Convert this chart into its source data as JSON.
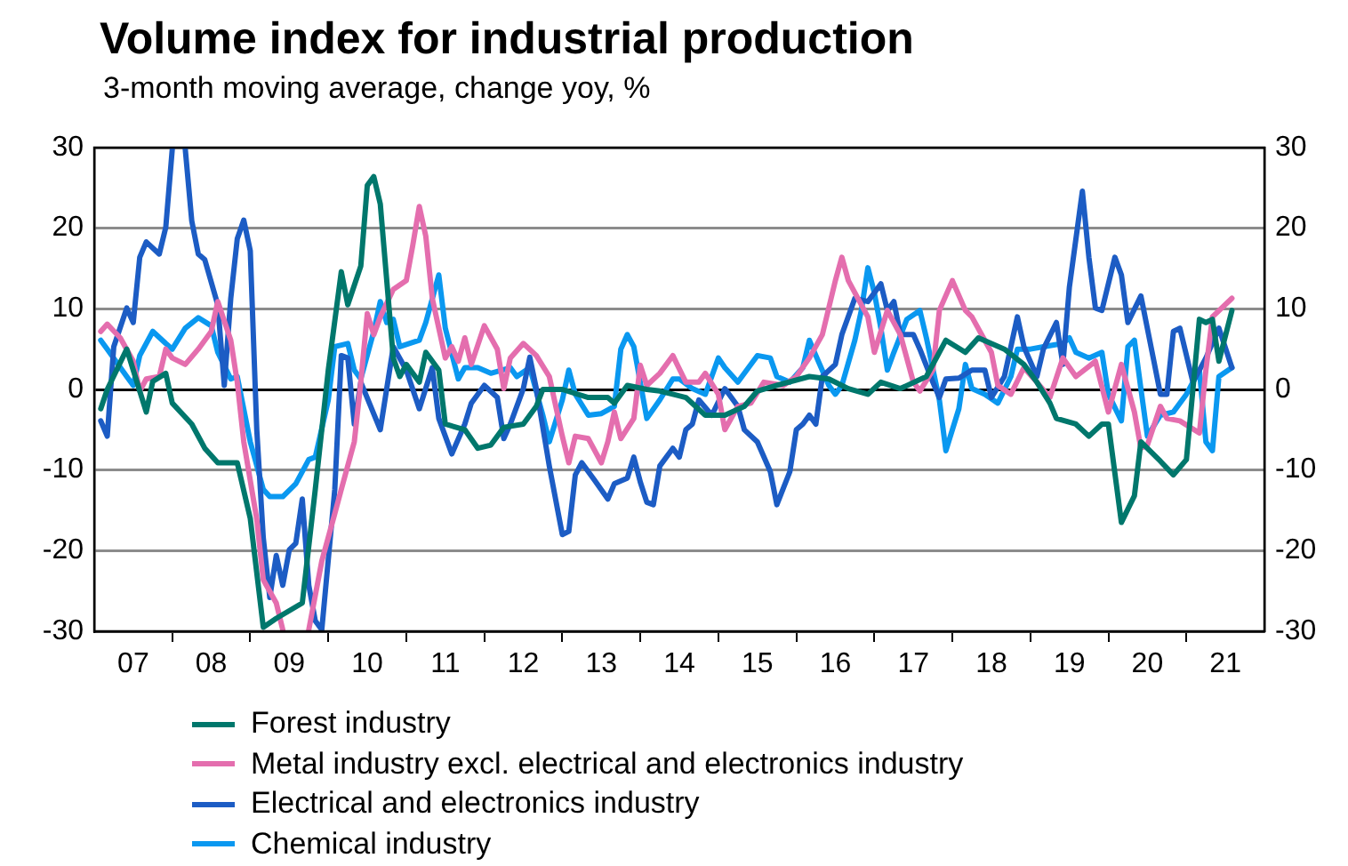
{
  "chart_data": {
    "type": "line",
    "title": "Volume index for industrial production",
    "subtitle": "3-month moving average, change yoy, %",
    "xlim": [
      "2007-01",
      "2022-01"
    ],
    "xticks": [
      {
        "value": "2007-07",
        "label": "07"
      },
      {
        "value": "2008-01",
        "label": null
      },
      {
        "value": "2008-07",
        "label": "08"
      },
      {
        "value": "2009-01",
        "label": null
      },
      {
        "value": "2009-07",
        "label": "09"
      },
      {
        "value": "2010-01",
        "label": null
      },
      {
        "value": "2010-07",
        "label": "10"
      },
      {
        "value": "2011-01",
        "label": null
      },
      {
        "value": "2011-07",
        "label": "11"
      },
      {
        "value": "2012-01",
        "label": null
      },
      {
        "value": "2012-07",
        "label": "12"
      },
      {
        "value": "2013-01",
        "label": null
      },
      {
        "value": "2013-07",
        "label": "13"
      },
      {
        "value": "2014-01",
        "label": null
      },
      {
        "value": "2014-07",
        "label": "14"
      },
      {
        "value": "2015-01",
        "label": null
      },
      {
        "value": "2015-07",
        "label": "15"
      },
      {
        "value": "2016-01",
        "label": null
      },
      {
        "value": "2016-07",
        "label": "16"
      },
      {
        "value": "2017-01",
        "label": null
      },
      {
        "value": "2017-07",
        "label": "17"
      },
      {
        "value": "2018-01",
        "label": null
      },
      {
        "value": "2018-07",
        "label": "18"
      },
      {
        "value": "2019-01",
        "label": null
      },
      {
        "value": "2019-07",
        "label": "19"
      },
      {
        "value": "2020-01",
        "label": null
      },
      {
        "value": "2020-07",
        "label": "20"
      },
      {
        "value": "2021-01",
        "label": null
      },
      {
        "value": "2021-07",
        "label": "21"
      }
    ],
    "ylim": [
      -30,
      30
    ],
    "yticks": [
      -30,
      -20,
      -10,
      0,
      10,
      20,
      30
    ],
    "y2lim": [
      -30,
      30
    ],
    "y2ticks": [
      -30,
      -20,
      -10,
      0,
      10,
      20,
      30
    ],
    "grid": "y",
    "legend": "bottom",
    "marker": "none",
    "line_style": "solid",
    "series": [
      {
        "name": "Forest industry",
        "color": "#00776c",
        "x": [
          "2007-02",
          "2007-03",
          "2007-06",
          "2007-07",
          "2007-09",
          "2007-10",
          "2007-12",
          "2008-01",
          "2008-04",
          "2008-06",
          "2008-08",
          "2008-11",
          "2009-01",
          "2009-03",
          "2009-05",
          "2009-09",
          "2009-11",
          "2010-01",
          "2010-03",
          "2010-04",
          "2010-06",
          "2010-07",
          "2010-08",
          "2010-09",
          "2010-11",
          "2010-12",
          "2011-01",
          "2011-03",
          "2011-04",
          "2011-06",
          "2011-07",
          "2011-10",
          "2011-12",
          "2012-02",
          "2012-04",
          "2012-07",
          "2012-09",
          "2012-10",
          "2013-01",
          "2013-05",
          "2013-08",
          "2013-09",
          "2013-11",
          "2014-02",
          "2014-04",
          "2014-06",
          "2014-08",
          "2014-11",
          "2015-02",
          "2015-05",
          "2015-07",
          "2015-10",
          "2016-03",
          "2016-06",
          "2016-09",
          "2016-12",
          "2017-02",
          "2017-05",
          "2017-09",
          "2017-12",
          "2018-03",
          "2018-05",
          "2018-09",
          "2018-12",
          "2019-02",
          "2019-04",
          "2019-05",
          "2019-08",
          "2019-10",
          "2019-12",
          "2020-01",
          "2020-03",
          "2020-05",
          "2020-06",
          "2020-09",
          "2020-11",
          "2021-01",
          "2021-03",
          "2021-04",
          "2021-05",
          "2021-06",
          "2021-08"
        ],
        "values": [
          -2.4,
          0,
          5,
          2.4,
          -2.8,
          1,
          2,
          -1.7,
          -4.3,
          -7.3,
          -9.1,
          -9.1,
          -16,
          -29.5,
          -28.4,
          -26.5,
          -12.4,
          2.4,
          14.6,
          10.5,
          15.3,
          25.3,
          26.4,
          23,
          3.9,
          1.6,
          3.1,
          0.9,
          4.6,
          2.4,
          -4.3,
          -5,
          -7.3,
          -6.9,
          -4.7,
          -4.3,
          -2.1,
          0,
          0,
          -1,
          -1,
          -1.7,
          0.5,
          0,
          -0.2,
          -0.6,
          -1,
          -3.2,
          -3.2,
          -2.1,
          -0.2,
          0.5,
          1.6,
          1.3,
          0.1,
          -0.6,
          0.9,
          0.1,
          1.6,
          6.1,
          4.6,
          6.4,
          5,
          3.1,
          0.9,
          -1.7,
          -3.6,
          -4.3,
          -5.8,
          -4.3,
          -4.3,
          -16.5,
          -13.2,
          -6.5,
          -8.9,
          -10.6,
          -8.7,
          8.7,
          8.3,
          8.7,
          3.5,
          9.8
        ]
      },
      {
        "name": "Metal industry excl. electrical and electronics industry",
        "color": "#e46eae",
        "x": [
          "2007-02",
          "2007-03",
          "2007-05",
          "2007-07",
          "2007-08",
          "2007-09",
          "2007-11",
          "2007-12",
          "2008-01",
          "2008-03",
          "2008-05",
          "2008-07",
          "2008-08",
          "2008-10",
          "2008-11",
          "2008-12",
          "2009-02",
          "2009-03",
          "2009-05",
          "2009-06",
          "2009-08",
          "2009-10",
          "2009-12",
          "2010-02",
          "2010-03",
          "2010-05",
          "2010-06",
          "2010-07",
          "2010-08",
          "2010-09",
          "2010-11",
          "2011-01",
          "2011-02",
          "2011-03",
          "2011-04",
          "2011-05",
          "2011-07",
          "2011-08",
          "2011-09",
          "2011-10",
          "2011-11",
          "2012-01",
          "2012-03",
          "2012-04",
          "2012-05",
          "2012-07",
          "2012-09",
          "2012-11",
          "2013-01",
          "2013-02",
          "2013-03",
          "2013-05",
          "2013-07",
          "2013-08",
          "2013-09",
          "2013-10",
          "2013-12",
          "2014-01",
          "2014-02",
          "2014-04",
          "2014-06",
          "2014-08",
          "2014-10",
          "2014-11",
          "2015-01",
          "2015-02",
          "2015-04",
          "2015-06",
          "2015-08",
          "2015-11",
          "2016-01",
          "2016-03",
          "2016-05",
          "2016-07",
          "2016-08",
          "2016-09",
          "2016-12",
          "2017-01",
          "2017-03",
          "2017-05",
          "2017-07",
          "2017-08",
          "2017-10",
          "2017-11",
          "2018-01",
          "2018-03",
          "2018-04",
          "2018-07",
          "2018-08",
          "2018-10",
          "2018-12",
          "2019-02",
          "2019-04",
          "2019-06",
          "2019-08",
          "2019-11",
          "2020-01",
          "2020-03",
          "2020-05",
          "2020-06",
          "2020-07",
          "2020-09",
          "2020-10",
          "2020-12",
          "2021-03",
          "2021-04",
          "2021-05",
          "2021-08"
        ],
        "values": [
          7.2,
          8.1,
          6.4,
          3.5,
          -0.2,
          1.3,
          1.6,
          5,
          3.9,
          3.1,
          5,
          7.2,
          10.9,
          6.1,
          0.9,
          -6.5,
          -16.1,
          -23.6,
          -26.5,
          -29.8,
          null,
          -29.8,
          -21.3,
          -15.4,
          -12.4,
          -6.5,
          0.9,
          9.4,
          6.8,
          9,
          12.4,
          13.5,
          17.9,
          22.7,
          19,
          11.3,
          3.9,
          5.3,
          3.5,
          6.4,
          3.1,
          7.9,
          5,
          0.1,
          3.9,
          5.7,
          4.2,
          1.6,
          -5.8,
          -9.1,
          -5.8,
          -6.1,
          -9.1,
          -6.5,
          -2.8,
          -6.1,
          -3.6,
          3,
          0.5,
          2,
          4.2,
          0.9,
          0.9,
          2,
          -0.6,
          -5,
          -2.1,
          -1.7,
          0.9,
          0.5,
          1.6,
          3.9,
          6.8,
          13.5,
          16.4,
          13.5,
          9,
          4.6,
          9.8,
          6.8,
          0.9,
          -0.2,
          2.4,
          9.8,
          13.5,
          9.8,
          9,
          4.6,
          0.5,
          -0.6,
          2.7,
          0.9,
          -1,
          3.9,
          1.6,
          3.5,
          -2.8,
          3.1,
          -2.8,
          -7.3,
          -6.9,
          -2.1,
          -3.6,
          -3.9,
          -5.4,
          2.4,
          9,
          11.3
        ]
      },
      {
        "name": "Electrical and electronics industry",
        "color": "#1c5cc4",
        "x": [
          "2007-02",
          "2007-03",
          "2007-04",
          "2007-06",
          "2007-07",
          "2007-08",
          "2007-09",
          "2007-11",
          "2007-12",
          "2008-01",
          "2008-02",
          "2008-03",
          "2008-04",
          "2008-05",
          "2008-06",
          "2008-08",
          "2008-09",
          "2008-10",
          "2008-11",
          "2008-12",
          "2009-01",
          "2009-02",
          "2009-03",
          "2009-04",
          "2009-05",
          "2009-06",
          "2009-07",
          "2009-08",
          "2009-09",
          "2009-10",
          "2009-11",
          "2009-12",
          "2010-02",
          "2010-03",
          "2010-04",
          "2010-05",
          "2010-06",
          "2010-09",
          "2010-11",
          "2011-01",
          "2011-03",
          "2011-05",
          "2011-06",
          "2011-08",
          "2011-10",
          "2011-11",
          "2012-01",
          "2012-03",
          "2012-04",
          "2012-05",
          "2012-07",
          "2012-08",
          "2012-09",
          "2012-11",
          "2013-01",
          "2013-02",
          "2013-03",
          "2013-04",
          "2013-06",
          "2013-08",
          "2013-09",
          "2013-11",
          "2013-12",
          "2014-01",
          "2014-02",
          "2014-03",
          "2014-04",
          "2014-06",
          "2014-07",
          "2014-08",
          "2014-09",
          "2014-10",
          "2014-12",
          "2015-02",
          "2015-04",
          "2015-05",
          "2015-07",
          "2015-09",
          "2015-10",
          "2015-12",
          "2016-01",
          "2016-02",
          "2016-03",
          "2016-04",
          "2016-05",
          "2016-07",
          "2016-08",
          "2016-10",
          "2016-12",
          "2017-02",
          "2017-03",
          "2017-04",
          "2017-05",
          "2017-07",
          "2017-08",
          "2017-10",
          "2017-11",
          "2017-12",
          "2018-02",
          "2018-04",
          "2018-06",
          "2018-07",
          "2018-09",
          "2018-11",
          "2018-12",
          "2019-02",
          "2019-03",
          "2019-05",
          "2019-06",
          "2019-07",
          "2019-09",
          "2019-10",
          "2019-11",
          "2019-12",
          "2020-02",
          "2020-03",
          "2020-04",
          "2020-06",
          "2020-08",
          "2020-09",
          "2020-10",
          "2020-11",
          "2020-12",
          "2021-02",
          "2021-04",
          "2021-06",
          "2021-08"
        ],
        "values": [
          -3.9,
          -5.8,
          5.3,
          10.1,
          8.3,
          16.4,
          18.3,
          16.8,
          20.1,
          29.8,
          null,
          29.8,
          20.9,
          16.8,
          16.1,
          10.5,
          0.5,
          11.3,
          18.7,
          21,
          17.2,
          -5,
          -18.4,
          -25.8,
          -20.6,
          -24.3,
          -19.9,
          -19.1,
          -13.6,
          -24.3,
          -28.7,
          -29.8,
          -12.4,
          4.2,
          3.9,
          -4.3,
          0.9,
          -5,
          5.3,
          2.4,
          -2.4,
          2.7,
          -3.6,
          -8,
          -4.3,
          -1.7,
          0.5,
          -1,
          -6.1,
          -4.3,
          0.1,
          4,
          0.1,
          -9.5,
          -18,
          -17.6,
          -10.6,
          -9.1,
          -11.3,
          -13.6,
          -11.7,
          -11,
          -8.4,
          -11.5,
          -14,
          -14.3,
          -9.5,
          -7.3,
          -8.4,
          -5,
          -4.3,
          -1.3,
          -3.2,
          0.1,
          -2.1,
          -5,
          -6.5,
          -10.2,
          -14.3,
          -10.2,
          -5,
          -4.3,
          -3.2,
          -4.3,
          1.6,
          3.1,
          6.8,
          11.3,
          10.9,
          13.1,
          9.8,
          10.9,
          6.8,
          6.8,
          5,
          0.9,
          -1,
          1.3,
          1.4,
          2.4,
          2.4,
          -1,
          1.6,
          9,
          5.3,
          1.6,
          5,
          8.3,
          3.1,
          12.7,
          24.6,
          16.4,
          10.1,
          9.8,
          16.4,
          14.2,
          8.3,
          11.6,
          3.5,
          -0.6,
          -0.6,
          7.2,
          7.6,
          0.9,
          3.9,
          7.6,
          2.7
        ]
      },
      {
        "name": "Chemical industry",
        "color": "#0a98f0",
        "x": [
          "2007-02",
          "2007-03",
          "2007-06",
          "2007-07",
          "2007-08",
          "2007-10",
          "2007-12",
          "2008-01",
          "2008-03",
          "2008-05",
          "2008-07",
          "2008-08",
          "2008-10",
          "2008-11",
          "2009-01",
          "2009-03",
          "2009-04",
          "2009-06",
          "2009-08",
          "2009-10",
          "2009-11",
          "2010-01",
          "2010-02",
          "2010-04",
          "2010-05",
          "2010-06",
          "2010-08",
          "2010-09",
          "2010-10",
          "2010-11",
          "2010-12",
          "2011-03",
          "2011-04",
          "2011-06",
          "2011-07",
          "2011-09",
          "2011-10",
          "2011-12",
          "2012-02",
          "2012-05",
          "2012-06",
          "2012-08",
          "2012-10",
          "2012-11",
          "2013-01",
          "2013-02",
          "2013-03",
          "2013-05",
          "2013-07",
          "2013-09",
          "2013-10",
          "2013-11",
          "2013-12",
          "2014-02",
          "2014-04",
          "2014-06",
          "2014-07",
          "2014-09",
          "2014-11",
          "2015-01",
          "2015-02",
          "2015-04",
          "2015-07",
          "2015-09",
          "2015-10",
          "2015-12",
          "2016-02",
          "2016-03",
          "2016-04",
          "2016-06",
          "2016-07",
          "2016-08",
          "2016-10",
          "2016-11",
          "2016-12",
          "2017-01",
          "2017-02",
          "2017-03",
          "2017-04",
          "2017-06",
          "2017-08",
          "2017-09",
          "2017-11",
          "2017-12",
          "2018-02",
          "2018-03",
          "2018-04",
          "2018-06",
          "2018-08",
          "2018-10",
          "2018-11",
          "2019-01",
          "2019-03",
          "2019-06",
          "2019-07",
          "2019-08",
          "2019-10",
          "2019-12",
          "2020-01",
          "2020-03",
          "2020-04",
          "2020-05",
          "2020-06",
          "2020-07",
          "2020-09",
          "2020-11",
          "2021-01",
          "2021-03",
          "2021-04",
          "2021-05",
          "2021-06",
          "2021-08"
        ],
        "values": [
          6.1,
          5,
          1.6,
          0.5,
          4.2,
          7.2,
          5.7,
          5,
          7.6,
          8.9,
          7.9,
          4.6,
          1.3,
          1.6,
          -6.5,
          -12.4,
          -13.3,
          -13.3,
          -11.7,
          -8.7,
          -8.4,
          -1.3,
          5.3,
          5.7,
          2.4,
          1.3,
          7.2,
          10.9,
          8.3,
          8.7,
          5.3,
          6.1,
          8.3,
          14.2,
          7.6,
          1.3,
          2.7,
          2.7,
          2,
          2.7,
          1.6,
          2.7,
          -3.2,
          -6.5,
          -1.3,
          2.4,
          -0.6,
          -3.2,
          -3,
          -2.1,
          5,
          6.8,
          5.3,
          -3.6,
          -1.3,
          1.3,
          1.3,
          0.1,
          -0.6,
          3.9,
          2.7,
          0.9,
          4.2,
          3.9,
          1.6,
          0.9,
          2.7,
          6.1,
          4.2,
          0.5,
          -0.6,
          0.5,
          6.1,
          9.8,
          15.1,
          12,
          7.6,
          2.4,
          4.6,
          8.7,
          9.8,
          6.4,
          -1.3,
          -7.6,
          -2.4,
          3.1,
          0.1,
          -0.6,
          -1.7,
          1.6,
          5,
          5,
          5.3,
          5.7,
          6.4,
          4.6,
          3.9,
          4.6,
          -0.6,
          -3.9,
          5.3,
          6.1,
          0.1,
          -5.8,
          -3.2,
          -2.8,
          -0.6,
          2.4,
          -6.5,
          -7.6,
          1.6,
          2.7
        ]
      }
    ]
  }
}
